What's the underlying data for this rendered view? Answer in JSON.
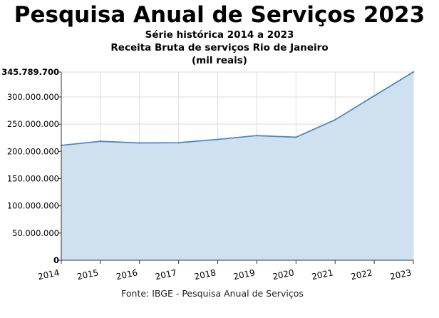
{
  "header": {
    "title": "Pesquisa Anual de Serviços 2023",
    "subtitle_line1": "Série histórica 2014 a 2023",
    "subtitle_line2": "Receita Bruta de serviços Rio de Janeiro",
    "subtitle_line3": "(mil reais)"
  },
  "footer": {
    "source": "Fonte: IBGE - Pesquisa Anual de Serviços"
  },
  "colors": {
    "line": "#4a8ac4",
    "fill": "#cfe0ef",
    "grid": "#dddddd",
    "axis": "#333333"
  },
  "chart_data": {
    "type": "area",
    "title": "Pesquisa Anual de Serviços 2023",
    "subtitle": "Série histórica 2014 a 2023 — Receita Bruta de serviços Rio de Janeiro (mil reais)",
    "x": [
      "2014",
      "2015",
      "2016",
      "2017",
      "2018",
      "2019",
      "2020",
      "2021",
      "2022",
      "2023"
    ],
    "series": [
      {
        "values": [
          211000000,
          218500000,
          215500000,
          216000000,
          222000000,
          229000000,
          226000000,
          258000000,
          302000000,
          345789700
        ]
      }
    ],
    "xlabel": "",
    "ylabel": "",
    "ylim": [
      0,
      345789700
    ],
    "yticks": [
      0,
      50000000,
      100000000,
      150000000,
      200000000,
      250000000,
      300000000,
      345789700
    ],
    "ytick_labels": [
      "0",
      "50.000.000",
      "100.000.000",
      "150.000.000",
      "200.000.000",
      "250.000.000",
      "300.000.000",
      "345.789.700"
    ],
    "grid": true,
    "legend": "none"
  }
}
